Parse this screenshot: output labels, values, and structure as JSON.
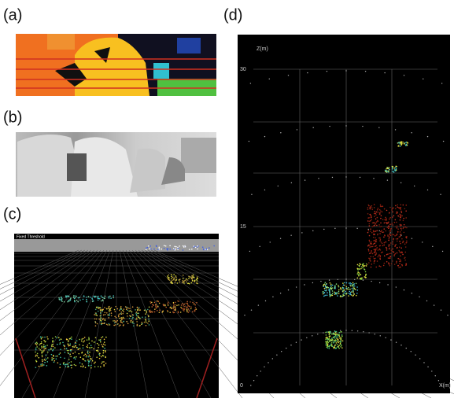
{
  "panels": [
    {
      "label": "(a)"
    },
    {
      "label": "(b)"
    },
    {
      "label": "(c)",
      "caption": "Fixed Threshold"
    },
    {
      "label": "(d)",
      "z_axis_label": "Z(m)",
      "x_axis_label": "X(m)",
      "z_ticks": [
        30,
        15,
        0
      ]
    }
  ]
}
